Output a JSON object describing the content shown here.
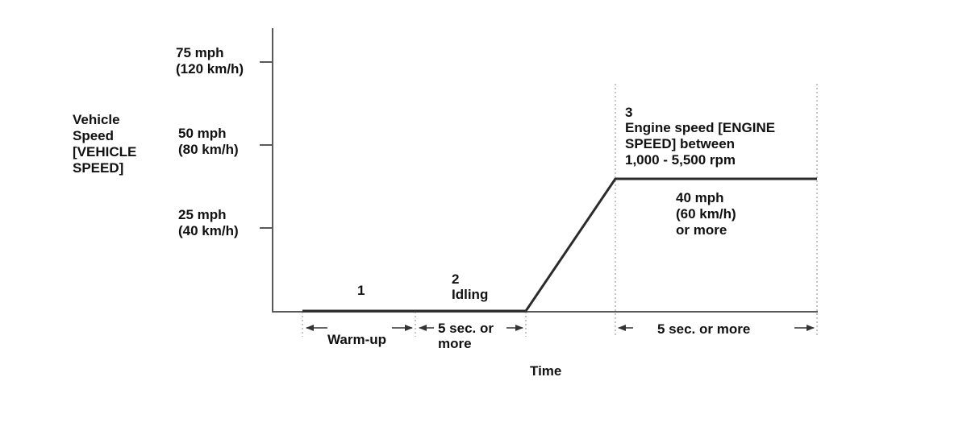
{
  "y_axis": {
    "label_lines": [
      "Vehicle",
      "Speed",
      "[VEHICLE",
      "SPEED]"
    ],
    "ticks": [
      {
        "line1": "75 mph",
        "line2": "(120 km/h)"
      },
      {
        "line1": "50 mph",
        "line2": "(80 km/h)"
      },
      {
        "line1": "25 mph",
        "line2": "(40 km/h)"
      }
    ]
  },
  "x_axis": {
    "label": "Time"
  },
  "phases": [
    {
      "number": "1",
      "description": "",
      "duration_lines": [
        "Warm-up"
      ]
    },
    {
      "number": "2",
      "description": "Idling",
      "duration_lines": [
        "5 sec. or",
        "more"
      ]
    },
    {
      "number": "3",
      "description_lines": [
        "Engine speed [ENGINE",
        "SPEED] between",
        "1,000 - 5,500 rpm"
      ],
      "speed_lines": [
        "40 mph",
        "(60 km/h)",
        "or more"
      ],
      "duration_lines": [
        "5 sec. or more"
      ]
    }
  ]
}
